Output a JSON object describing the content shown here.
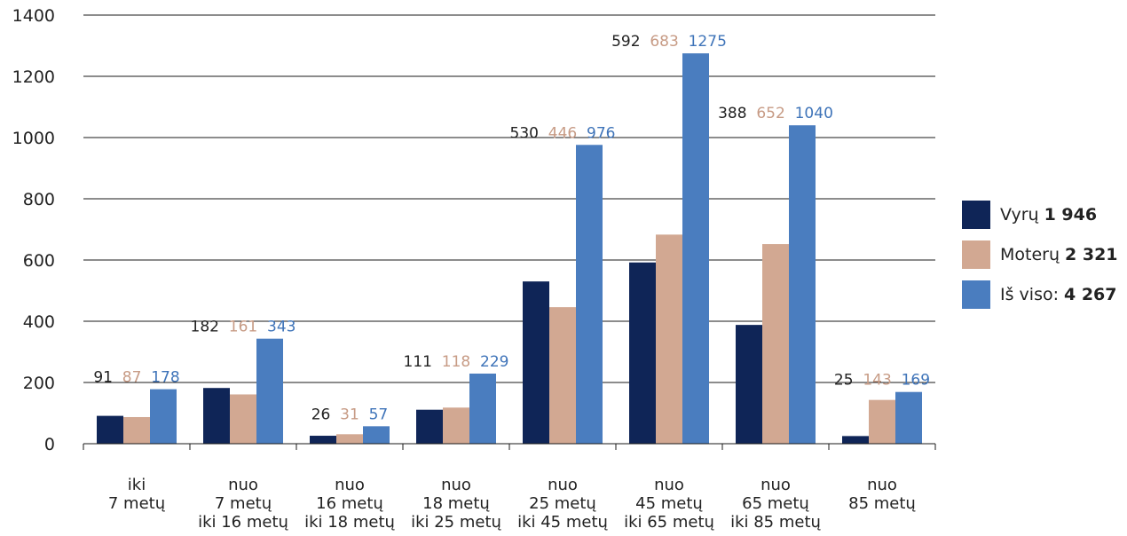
{
  "chart_data": {
    "type": "bar",
    "categories": [
      [
        "iki",
        "7 metų"
      ],
      [
        "nuo",
        "7 metų",
        "iki 16 metų"
      ],
      [
        "nuo",
        "16 metų",
        "iki 18 metų"
      ],
      [
        "nuo",
        "18 metų",
        "iki 25 metų"
      ],
      [
        "nuo",
        "25 metų",
        "iki 45 metų"
      ],
      [
        "nuo",
        "45 metų",
        "iki 65 metų"
      ],
      [
        "nuo",
        "65 metų",
        "iki 85 metų"
      ],
      [
        "nuo",
        "85 metų"
      ]
    ],
    "series": [
      {
        "name": "Vyrų",
        "total": "1 946",
        "color": "#0f2557",
        "label_color": "#222222",
        "values": [
          91,
          182,
          26,
          111,
          530,
          592,
          388,
          25
        ]
      },
      {
        "name": "Moterų",
        "total": "2 321",
        "color": "#d2a892",
        "label_color": "#c79b85",
        "values": [
          87,
          161,
          31,
          118,
          446,
          683,
          652,
          143
        ]
      },
      {
        "name": "Iš viso:",
        "total": "4 267",
        "color": "#4a7dbf",
        "label_color": "#3f74b9",
        "values": [
          178,
          343,
          57,
          229,
          976,
          1275,
          1040,
          169
        ]
      }
    ],
    "yticks": [
      0,
      200,
      400,
      600,
      800,
      1000,
      1200,
      1400
    ],
    "ylim": [
      0,
      1400
    ],
    "grid": true,
    "legend_position": "right"
  }
}
